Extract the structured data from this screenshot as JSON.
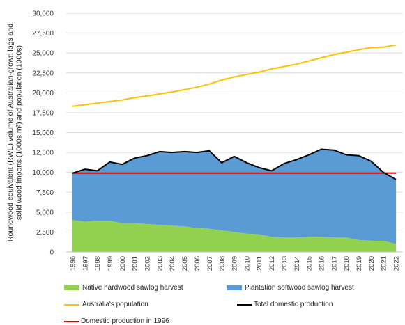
{
  "chart_data": {
    "type": "area",
    "ylabel": "Roundwood equivalent (RWE) volume of Australian-grown logs and solid wood imports (1000s m³) and population (1000s)",
    "ylim": [
      0,
      30000
    ],
    "yticks": [
      "0",
      "2,500",
      "5,000",
      "7,500",
      "10,000",
      "12,500",
      "15,000",
      "17,500",
      "20,000",
      "22,500",
      "25,000",
      "27,500",
      "30,000"
    ],
    "grid": true,
    "legend_position": "bottom",
    "categories": [
      "1996",
      "1997",
      "1998",
      "1999",
      "2000",
      "2001",
      "2002",
      "2003",
      "2004",
      "2005",
      "2006",
      "2007",
      "2008",
      "2009",
      "2010",
      "2011",
      "2012",
      "2013",
      "2014",
      "2015",
      "2016",
      "2017",
      "2018",
      "2019",
      "2020",
      "2021",
      "2022"
    ],
    "series": [
      {
        "name": "Native hardwood sawlog harvest",
        "kind": "area",
        "color": "#92d050",
        "values": [
          4000,
          3800,
          3900,
          3900,
          3600,
          3600,
          3500,
          3400,
          3300,
          3200,
          3000,
          2900,
          2700,
          2500,
          2300,
          2200,
          1900,
          1800,
          1800,
          1900,
          1900,
          1800,
          1800,
          1500,
          1400,
          1400,
          1000
        ]
      },
      {
        "name": "Plantation softwood sawlog harvest",
        "kind": "area",
        "color": "#5b9bd5",
        "values": [
          5900,
          6600,
          6300,
          7400,
          7400,
          8200,
          8600,
          9200,
          9200,
          9400,
          9500,
          9800,
          8500,
          9500,
          8900,
          8400,
          8300,
          9300,
          9800,
          10300,
          11000,
          11000,
          10400,
          10600,
          10000,
          8600,
          8100
        ]
      },
      {
        "name": "Australia's population",
        "kind": "line",
        "color": "#ffc000",
        "values": [
          18300,
          18500,
          18700,
          18900,
          19100,
          19400,
          19600,
          19850,
          20100,
          20400,
          20700,
          21100,
          21600,
          22000,
          22300,
          22600,
          23000,
          23300,
          23600,
          24000,
          24400,
          24800,
          25100,
          25400,
          25700,
          25750,
          26000
        ]
      },
      {
        "name": "Total domestic production",
        "kind": "line",
        "color": "#000000",
        "values": [
          9900,
          10400,
          10200,
          11300,
          11000,
          11800,
          12100,
          12600,
          12500,
          12600,
          12500,
          12700,
          11200,
          12000,
          11200,
          10600,
          10200,
          11100,
          11600,
          12200,
          12900,
          12800,
          12200,
          12100,
          11400,
          10000,
          9100
        ]
      },
      {
        "name": "Domestic production in 1996",
        "kind": "line",
        "color": "#e00000",
        "values": [
          9900,
          9900,
          9900,
          9900,
          9900,
          9900,
          9900,
          9900,
          9900,
          9900,
          9900,
          9900,
          9900,
          9900,
          9900,
          9900,
          9900,
          9900,
          9900,
          9900,
          9900,
          9900,
          9900,
          9900,
          9900,
          9900,
          9900
        ]
      }
    ]
  },
  "legend": [
    {
      "label": "Native hardwood sawlog harvest",
      "kind": "box",
      "color": "#92d050"
    },
    {
      "label": "Plantation softwood sawlog harvest",
      "kind": "box",
      "color": "#5b9bd5"
    },
    {
      "label": "Australia's population",
      "kind": "line",
      "color": "#ffc000"
    },
    {
      "label": "Total domestic production",
      "kind": "line",
      "color": "#000000"
    },
    {
      "label": "Domestic production in 1996",
      "kind": "line",
      "color": "#e00000"
    }
  ]
}
